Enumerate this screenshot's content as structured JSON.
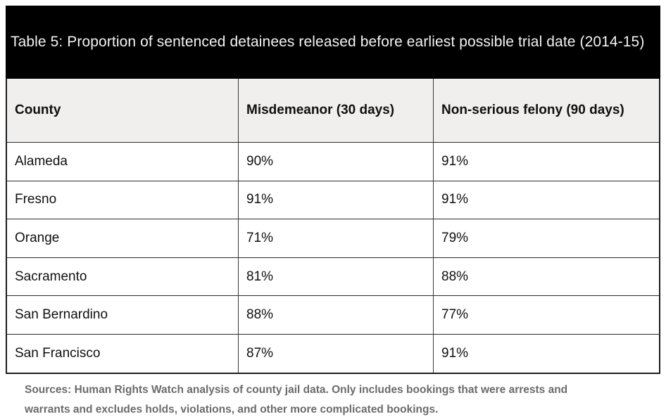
{
  "title": "Table 5: Proportion of sentenced detainees released before earliest possible trial date (2014-15)",
  "table": {
    "columns": {
      "county": "County",
      "misdemeanor": "Misdemeanor (30 days)",
      "felony": "Non-serious felony (90 days)"
    },
    "rows": [
      {
        "county": "Alameda",
        "misdemeanor": "90%",
        "felony": "91%"
      },
      {
        "county": "Fresno",
        "misdemeanor": "91%",
        "felony": "91%"
      },
      {
        "county": "Orange",
        "misdemeanor": "71%",
        "felony": "79%"
      },
      {
        "county": "Sacramento",
        "misdemeanor": "81%",
        "felony": "88%"
      },
      {
        "county": "San Bernardino",
        "misdemeanor": "88%",
        "felony": "77%"
      },
      {
        "county": "San Francisco",
        "misdemeanor": "87%",
        "felony": "91%"
      }
    ]
  },
  "source_note": {
    "line1": "Sources: Human Rights Watch analysis of county jail data. Only includes bookings that were arrests and",
    "line2": "warrants and excludes holds, violations, and other more complicated bookings."
  },
  "colors": {
    "title_bg": "#000000",
    "title_text": "#f3f3f3",
    "header_bg": "#f0efee",
    "border": "#2a2a2a",
    "note_text": "#6b6b6b"
  },
  "chart_data": {
    "type": "table",
    "title": "Table 5: Proportion of sentenced detainees released before earliest possible trial date (2014-15)",
    "categories": [
      "Alameda",
      "Fresno",
      "Orange",
      "Sacramento",
      "San Bernardino",
      "San Francisco"
    ],
    "series": [
      {
        "name": "Misdemeanor (30 days)",
        "values": [
          90,
          91,
          71,
          81,
          88,
          87
        ]
      },
      {
        "name": "Non-serious felony (90 days)",
        "values": [
          91,
          91,
          79,
          88,
          77,
          91
        ]
      }
    ],
    "value_unit": "%"
  }
}
